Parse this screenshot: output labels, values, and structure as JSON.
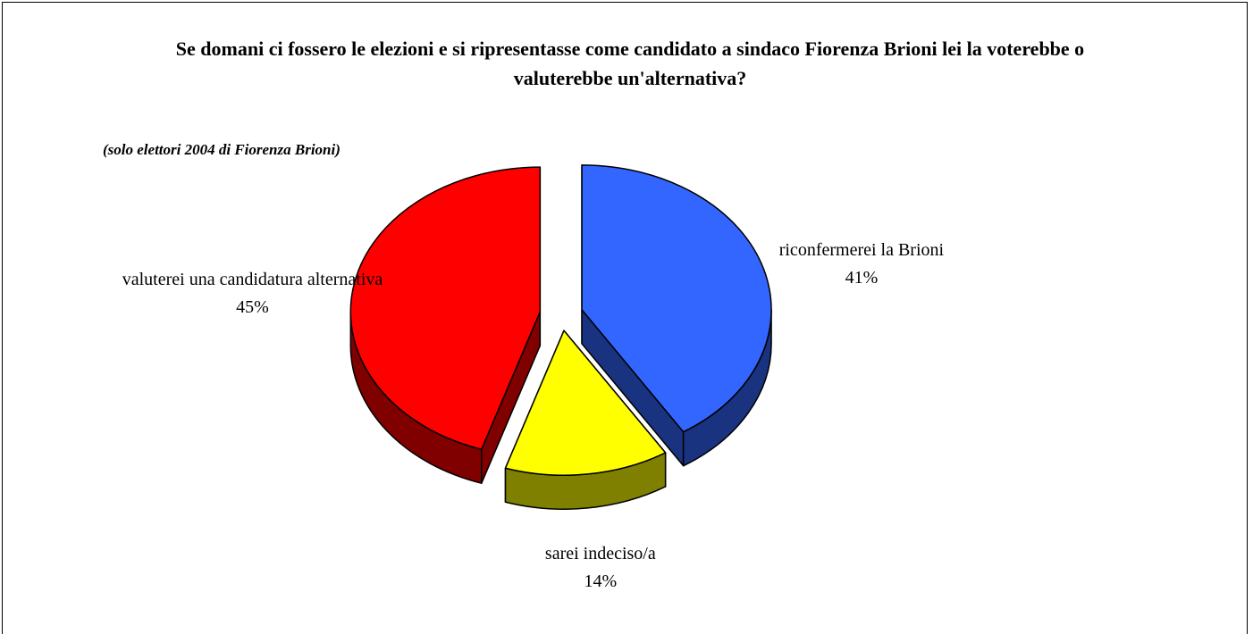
{
  "chart_data": {
    "type": "pie",
    "title": "Se domani ci fossero le elezioni e si ripresentasse come candidato a sindaco Fiorenza Brioni lei la voterebbe o valuterebbe un'alternativa?",
    "subtitle": "(solo elettori 2004 di Fiorenza Brioni)",
    "categories": [
      "riconfermerei la Brioni",
      "sarei indeciso/a",
      "valuterei una candidatura alternativa"
    ],
    "values": [
      41,
      14,
      45
    ],
    "value_labels": [
      "41%",
      "14%",
      "45%"
    ],
    "colors": [
      "#3366ff",
      "#ffff00",
      "#ff0000"
    ]
  }
}
